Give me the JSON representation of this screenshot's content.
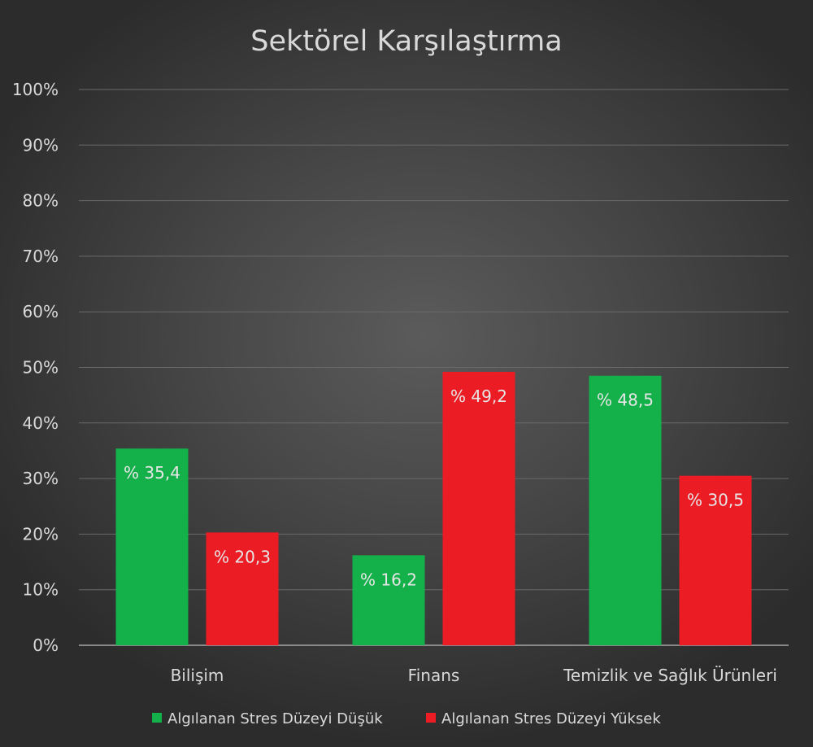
{
  "chart_data": {
    "type": "bar",
    "title": "Sektörel Karşılaştırma",
    "categories": [
      "Bilişim",
      "Finans",
      "Temizlik ve Sağlık Ürünleri"
    ],
    "series": [
      {
        "name": "Algılanan Stres Düzeyi Düşük",
        "color": "#14b04a",
        "values": [
          35.4,
          16.2,
          48.5
        ],
        "labels": [
          "% 35,4",
          "% 16,2",
          "% 48,5"
        ]
      },
      {
        "name": "Algılanan Stres Düzeyi Yüksek",
        "color": "#ec1c24",
        "values": [
          20.3,
          49.2,
          30.5
        ],
        "labels": [
          "% 20,3",
          "% 49,2",
          "% 30,5"
        ]
      }
    ],
    "ylim": [
      0,
      100
    ],
    "yticks": [
      "0%",
      "10%",
      "20%",
      "30%",
      "40%",
      "50%",
      "60%",
      "70%",
      "80%",
      "90%",
      "100%"
    ],
    "grid": true,
    "legend_position": "bottom",
    "text_color": "#d9d9d9",
    "label_color": "#e6e6e6",
    "grid_color": "#6a6a6a"
  }
}
